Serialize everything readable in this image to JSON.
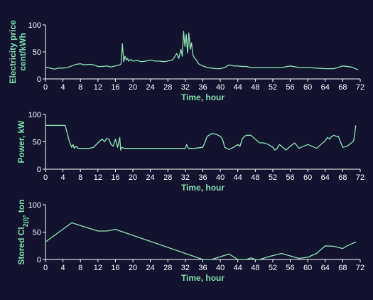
{
  "colors": {
    "background": "#13132e",
    "axis": "#ffffff",
    "line": "#8fe5b4",
    "label": "#7fe0ad"
  },
  "chart_data": [
    {
      "type": "line",
      "title": "",
      "xlabel": "Time, hour",
      "ylabel": "Electricity price cent/kWh",
      "ylabel_lines": [
        "Electricity price",
        "cent/kWh"
      ],
      "xlim": [
        0,
        72
      ],
      "ylim": [
        0,
        100
      ],
      "xticks": [
        0,
        4,
        8,
        12,
        16,
        20,
        24,
        28,
        32,
        36,
        40,
        44,
        48,
        52,
        56,
        60,
        64,
        68,
        72
      ],
      "yticks": [
        0,
        50,
        100
      ],
      "grid": false,
      "series": [
        {
          "x": [
            0,
            2,
            3,
            4,
            5,
            6,
            7,
            8,
            9,
            10,
            11,
            12,
            13,
            14,
            15,
            16,
            17,
            17.3,
            17.6,
            17.9,
            18.2,
            18.5,
            18.8,
            19,
            19.5,
            20,
            21,
            22,
            23,
            24,
            25,
            26,
            27,
            28,
            29,
            29.5,
            30,
            30.5,
            31,
            31.3,
            31.6,
            31.9,
            32.2,
            32.5,
            32.8,
            33.1,
            33.4,
            33.7,
            34,
            34.5,
            35,
            36,
            37,
            38,
            39,
            40,
            41,
            42,
            43,
            44,
            45,
            46,
            47,
            48,
            50,
            52,
            54,
            56,
            58,
            60,
            62,
            64,
            66,
            68,
            70,
            71.5
          ],
          "y": [
            22,
            18,
            20,
            20,
            21,
            24,
            27,
            28,
            26,
            27,
            26,
            23,
            23,
            24,
            22,
            24,
            26,
            28,
            65,
            32,
            42,
            35,
            38,
            33,
            36,
            33,
            34,
            32,
            33,
            35,
            33,
            33,
            32,
            33,
            35,
            40,
            47,
            38,
            55,
            42,
            88,
            60,
            82,
            48,
            85,
            55,
            67,
            45,
            40,
            35,
            28,
            24,
            21,
            20,
            19,
            19,
            21,
            26,
            24,
            24,
            23,
            23,
            21,
            21,
            21,
            21,
            21,
            24,
            21,
            21,
            20,
            19,
            19,
            24,
            22,
            17
          ]
        }
      ]
    },
    {
      "type": "line",
      "title": "",
      "xlabel": "Time, hour",
      "ylabel": "Power, kW",
      "ylabel_lines": [
        "Power, kW"
      ],
      "xlim": [
        0,
        72
      ],
      "ylim": [
        0,
        100
      ],
      "xticks": [
        0,
        4,
        8,
        12,
        16,
        20,
        24,
        28,
        32,
        36,
        40,
        44,
        48,
        52,
        56,
        60,
        64,
        68,
        72
      ],
      "yticks": [
        0,
        50,
        100
      ],
      "grid": false,
      "series": [
        {
          "x": [
            0,
            4,
            4.5,
            5,
            5.5,
            6,
            6.3,
            6.6,
            7,
            7.5,
            8,
            9,
            10,
            11,
            12,
            12.5,
            13,
            13.5,
            14,
            14.5,
            15,
            15.5,
            16,
            16.5,
            17,
            17.2,
            17.5,
            18,
            32,
            32.3,
            32.7,
            33,
            33.5,
            34,
            36,
            36.5,
            37,
            38,
            39,
            40,
            40.5,
            41,
            41.5,
            42,
            43,
            44,
            44.5,
            45,
            45.5,
            46,
            47,
            48,
            49,
            50,
            51,
            52,
            52.5,
            53,
            53.5,
            54,
            55,
            56,
            57,
            58,
            59,
            60,
            61,
            62,
            63,
            64,
            64.5,
            65,
            65.5,
            66,
            66.5,
            67,
            67.5,
            68,
            69,
            70,
            70.5,
            71
          ],
          "y": [
            80,
            80,
            80,
            65,
            50,
            40,
            45,
            38,
            42,
            38,
            38,
            38,
            38,
            40,
            48,
            52,
            55,
            50,
            56,
            55,
            45,
            42,
            55,
            40,
            58,
            35,
            40,
            38,
            38,
            45,
            38,
            38,
            38,
            38,
            40,
            50,
            60,
            65,
            64,
            60,
            55,
            40,
            38,
            36,
            40,
            45,
            42,
            55,
            60,
            62,
            62,
            55,
            48,
            48,
            45,
            40,
            35,
            38,
            45,
            42,
            35,
            42,
            48,
            38,
            42,
            45,
            42,
            38,
            45,
            52,
            58,
            55,
            60,
            62,
            60,
            60,
            50,
            40,
            42,
            48,
            52,
            80
          ]
        }
      ]
    },
    {
      "type": "line",
      "title": "",
      "xlabel": "Time, hour",
      "ylabel": "Stored Cl2(l), ton",
      "ylabel_lines": [
        "Stored Cl",
        "2(l)",
        ", ton"
      ],
      "xlim": [
        0,
        72
      ],
      "ylim": [
        0,
        100
      ],
      "xticks": [
        0,
        4,
        8,
        12,
        16,
        20,
        24,
        28,
        32,
        36,
        40,
        44,
        48,
        52,
        56,
        60,
        64,
        68,
        72
      ],
      "yticks": [
        0,
        50,
        100
      ],
      "grid": false,
      "series": [
        {
          "x": [
            0,
            6,
            12,
            14,
            16,
            36,
            38,
            42,
            44,
            46,
            47,
            48,
            49,
            51,
            54,
            58,
            60,
            62,
            64,
            66,
            68,
            69,
            71
          ],
          "y": [
            32,
            67,
            52,
            52,
            55,
            0,
            0,
            10,
            0,
            0,
            3,
            0,
            0,
            5,
            11,
            2,
            4,
            11,
            25,
            24,
            20,
            25,
            32
          ]
        }
      ]
    }
  ]
}
